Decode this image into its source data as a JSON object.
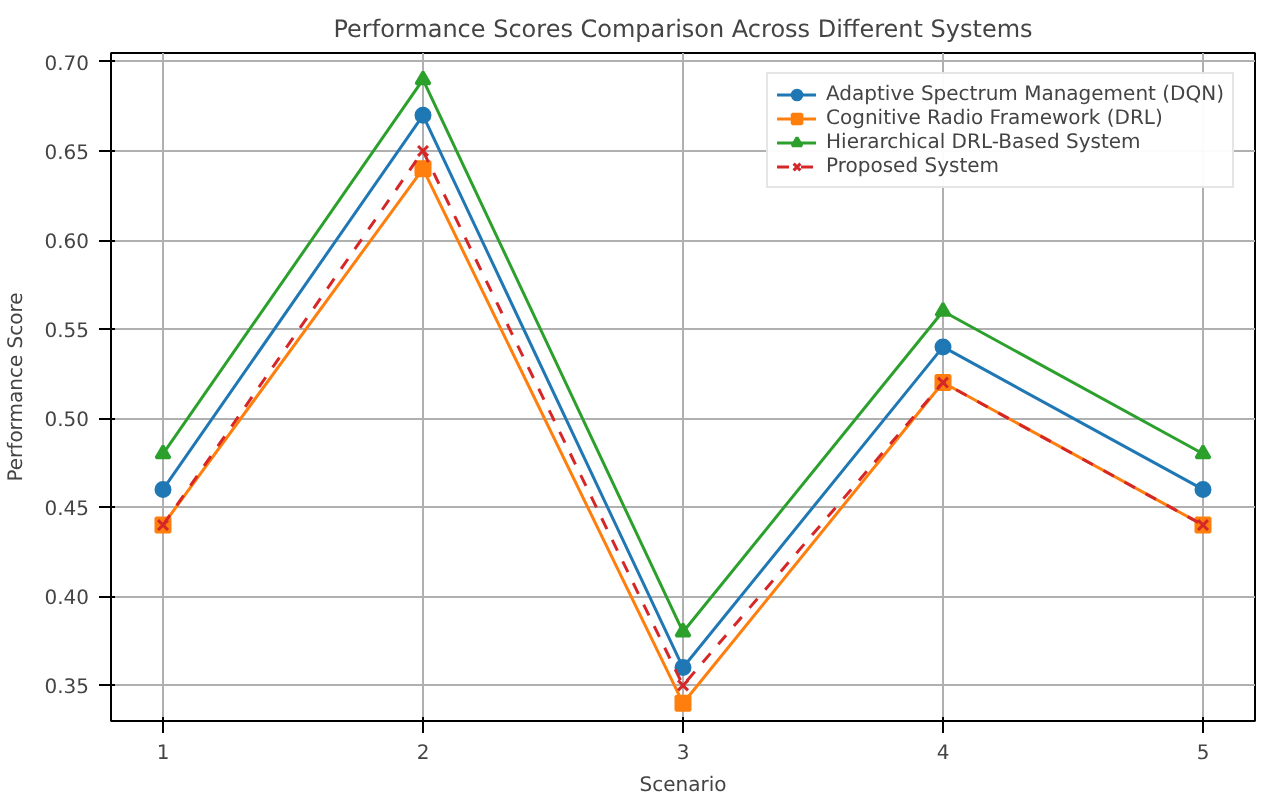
{
  "chart_data": {
    "type": "line",
    "title": "Performance Scores Comparison Across Different Systems",
    "xlabel": "Scenario",
    "ylabel": "Performance Score",
    "x": [
      1,
      2,
      3,
      4,
      5
    ],
    "xlim": [
      0.8,
      5.2
    ],
    "xticks": [
      1,
      2,
      3,
      4,
      5
    ],
    "ylim": [
      0.33,
      0.705
    ],
    "yticks": [
      0.35,
      {
        "value": 0.4,
        "label": "0.40"
      },
      0.45,
      {
        "value": 0.5,
        "label": "0.50"
      },
      0.55,
      {
        "value": 0.6,
        "label": "0.60"
      },
      0.65,
      {
        "value": 0.7,
        "label": "0.70"
      }
    ],
    "grid": true,
    "legend": "top right",
    "series": [
      {
        "name": "Adaptive Spectrum Management (DQN)",
        "color": "#1f77b4",
        "values": [
          0.46,
          0.67,
          0.36,
          0.54,
          0.46
        ],
        "marker": "circle",
        "line_style": "solid"
      },
      {
        "name": "Cognitive Radio Framework (DRL)",
        "color": "#ff7f0e",
        "values": [
          0.44,
          0.64,
          0.34,
          0.52,
          0.44
        ],
        "marker": "square",
        "line_style": "solid"
      },
      {
        "name": "Hierarchical DRL-Based System",
        "color": "#2ca02c",
        "values": [
          0.48,
          0.69,
          0.38,
          0.56,
          0.48
        ],
        "marker": "triangle",
        "line_style": "solid"
      },
      {
        "name": "Proposed System",
        "color": "#d62728",
        "values": [
          0.44,
          0.65,
          0.35,
          0.52,
          0.44
        ],
        "marker": "x",
        "line_style": "dashed"
      }
    ]
  }
}
